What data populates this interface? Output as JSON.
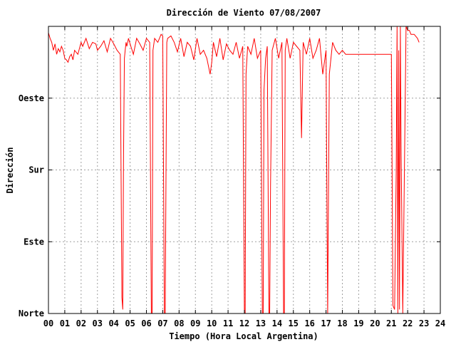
{
  "chart_data": {
    "type": "line",
    "title": "Dirección de Viento 07/08/2007",
    "xlabel": "Tiempo (Hora Local Argentina)",
    "ylabel": "Dirección",
    "xlim": [
      0,
      24
    ],
    "ylim": [
      0,
      360
    ],
    "grid": true,
    "x_ticks": [
      0,
      1,
      2,
      3,
      4,
      5,
      6,
      7,
      8,
      9,
      10,
      11,
      12,
      13,
      14,
      15,
      16,
      17,
      18,
      19,
      20,
      21,
      22,
      23,
      24
    ],
    "x_tick_labels": [
      "00",
      "01",
      "02",
      "03",
      "04",
      "05",
      "06",
      "07",
      "08",
      "09",
      "10",
      "11",
      "12",
      "13",
      "14",
      "15",
      "16",
      "17",
      "18",
      "19",
      "20",
      "21",
      "22",
      "23",
      "24"
    ],
    "y_ticks": [
      0,
      90,
      180,
      270
    ],
    "y_tick_labels": [
      "Norte",
      "Este",
      "Sur",
      "Oeste"
    ],
    "series": [
      {
        "color": "#ff0000",
        "x": [
          0.0,
          0.1,
          0.2,
          0.3,
          0.4,
          0.5,
          0.6,
          0.7,
          0.8,
          0.9,
          1.0,
          1.1,
          1.2,
          1.3,
          1.4,
          1.5,
          1.6,
          1.8,
          2.0,
          2.1,
          2.3,
          2.5,
          2.7,
          2.9,
          3.0,
          3.2,
          3.4,
          3.6,
          3.8,
          4.0,
          4.2,
          4.4,
          4.5,
          4.55,
          4.6,
          4.65,
          4.7,
          4.75,
          4.8,
          4.9,
          5.0,
          5.2,
          5.4,
          5.6,
          5.8,
          6.0,
          6.2,
          6.3,
          6.35,
          6.4,
          6.5,
          6.7,
          6.9,
          7.0,
          7.1,
          7.15,
          7.2,
          7.25,
          7.3,
          7.5,
          7.7,
          7.9,
          8.1,
          8.3,
          8.5,
          8.7,
          8.9,
          9.1,
          9.3,
          9.5,
          9.7,
          9.9,
          10.0,
          10.1,
          10.3,
          10.5,
          10.7,
          10.9,
          11.1,
          11.3,
          11.5,
          11.7,
          11.9,
          12.0,
          12.05,
          12.1,
          12.2,
          12.4,
          12.6,
          12.8,
          13.0,
          13.1,
          13.15,
          13.2,
          13.3,
          13.4,
          13.5,
          13.55,
          13.6,
          13.7,
          13.9,
          14.1,
          14.3,
          14.4,
          14.45,
          14.5,
          14.6,
          14.8,
          15.0,
          15.2,
          15.4,
          15.5,
          15.6,
          15.8,
          16.0,
          16.2,
          16.4,
          16.6,
          16.8,
          17.0,
          17.05,
          17.1,
          17.2,
          17.4,
          17.6,
          17.8,
          18.0,
          18.2,
          18.4,
          18.6,
          18.8,
          19.0,
          19.2,
          19.4,
          19.6,
          19.8,
          20.0,
          20.2,
          20.4,
          20.6,
          20.8,
          21.0,
          21.1,
          21.2,
          21.3,
          21.35,
          21.4,
          21.45,
          21.5,
          21.55,
          21.6,
          21.7,
          21.8,
          21.9,
          22.0,
          22.05,
          22.1,
          22.2,
          22.4,
          22.6,
          22.7
        ],
        "y": [
          352,
          345,
          340,
          330,
          338,
          325,
          332,
          328,
          335,
          330,
          320,
          318,
          315,
          322,
          325,
          318,
          330,
          325,
          340,
          335,
          345,
          332,
          340,
          338,
          330,
          335,
          342,
          328,
          345,
          338,
          330,
          325,
          20,
          5,
          200,
          320,
          330,
          340,
          335,
          345,
          338,
          325,
          345,
          338,
          330,
          345,
          340,
          0,
          0,
          330,
          345,
          340,
          350,
          348,
          0,
          0,
          175,
          340,
          345,
          348,
          340,
          328,
          345,
          322,
          340,
          335,
          318,
          345,
          325,
          330,
          320,
          300,
          315,
          340,
          322,
          345,
          318,
          338,
          330,
          325,
          340,
          320,
          335,
          0,
          0,
          300,
          335,
          325,
          345,
          320,
          330,
          0,
          0,
          280,
          320,
          335,
          0,
          0,
          160,
          330,
          345,
          320,
          340,
          0,
          0,
          330,
          345,
          320,
          340,
          335,
          330,
          220,
          340,
          325,
          345,
          320,
          330,
          345,
          300,
          330,
          160,
          0,
          300,
          340,
          330,
          325,
          330,
          325,
          325,
          325,
          325,
          325,
          325,
          325,
          325,
          325,
          325,
          325,
          325,
          325,
          325,
          325,
          10,
          5,
          180,
          360,
          0,
          330,
          5,
          360,
          200,
          0,
          180,
          360,
          355,
          355,
          355,
          350,
          350,
          345,
          340
        ]
      }
    ]
  }
}
